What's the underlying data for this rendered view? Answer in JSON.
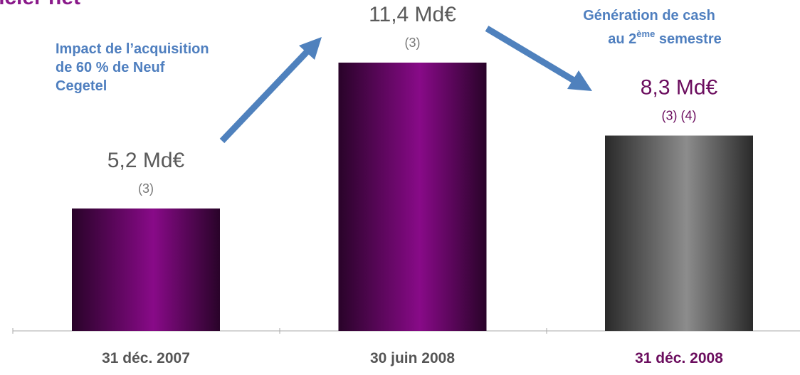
{
  "chart_data": {
    "type": "bar",
    "title": "ncier net",
    "categories": [
      "31 déc. 2007",
      "30 juin 2008",
      "31 déc. 2008"
    ],
    "values": [
      5.2,
      11.4,
      8.3
    ],
    "value_labels": [
      "5,2 Md€",
      "11,4 Md€",
      "8,3 Md€"
    ],
    "notes": [
      "(3)",
      "(3)",
      "(3) (4)"
    ],
    "colors": [
      "#880a88",
      "#880a88",
      "#8c8c8c"
    ],
    "annotations": [
      {
        "lines": [
          "Impact de l’acquisition",
          "de 60 % de Neuf",
          "Cegetel"
        ]
      },
      {
        "line1": "Génération de cash",
        "line2": "au 2",
        "sup": "ème",
        "line2_end": " semestre"
      }
    ]
  }
}
